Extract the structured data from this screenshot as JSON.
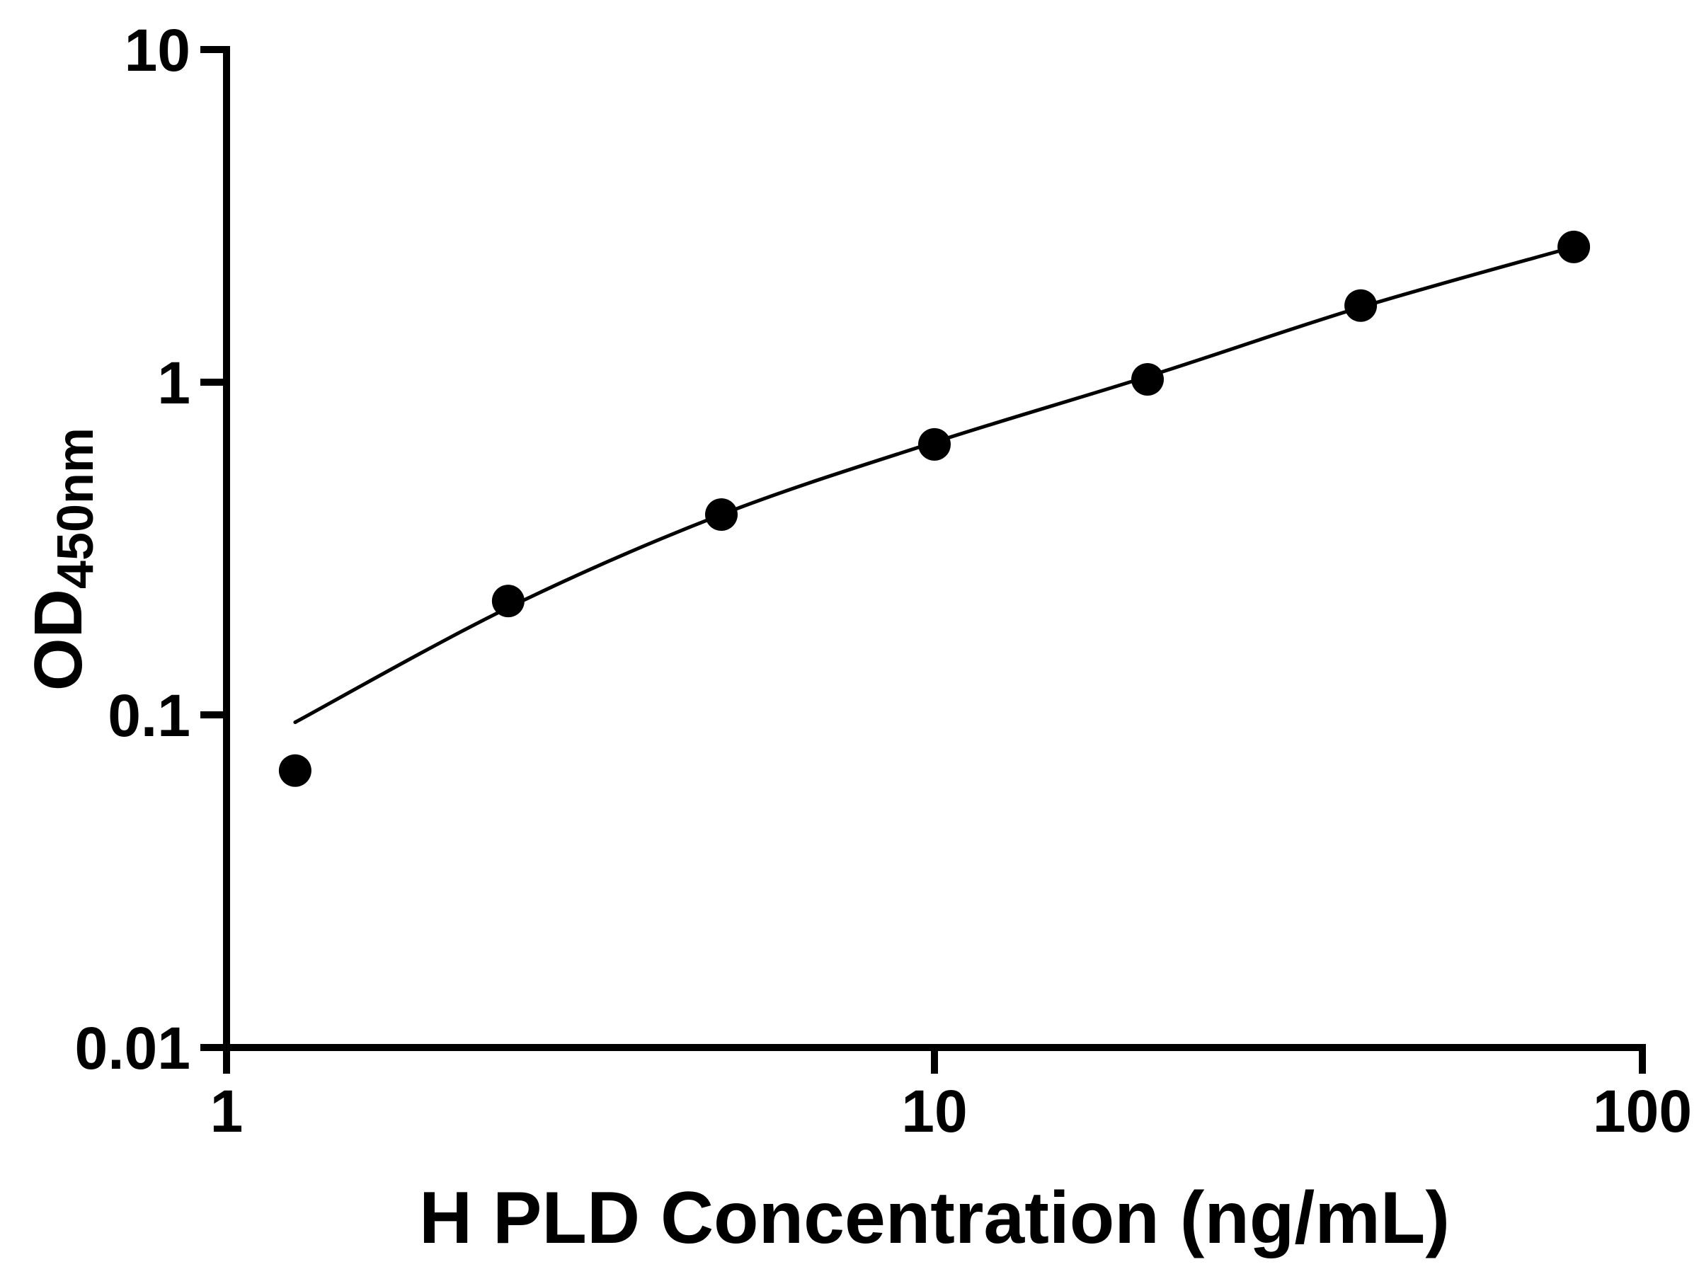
{
  "chart_data": {
    "type": "scatter",
    "title": "",
    "xlabel": "H PLD Concentration (ng/mL)",
    "ylabel_base": "OD",
    "ylabel_subscript": "450nm",
    "xscale": "log",
    "yscale": "log",
    "xlim": [
      1,
      100
    ],
    "ylim": [
      0.01,
      10
    ],
    "x_ticks": [
      1,
      10,
      100
    ],
    "x_tick_labels": [
      "1",
      "10",
      "100"
    ],
    "y_ticks": [
      0.01,
      0.1,
      1,
      10
    ],
    "y_tick_labels": [
      "0.01",
      "0.1",
      "1",
      "10"
    ],
    "grid": false,
    "legend": false,
    "series": [
      {
        "x": [
          1.25,
          2.5,
          5,
          10,
          20,
          40,
          80
        ],
        "y": [
          0.068,
          0.22,
          0.4,
          0.65,
          1.02,
          1.7,
          2.55
        ],
        "marker": "circle",
        "marker_color": "#000000",
        "marker_radius_px": 23
      }
    ],
    "fit_curve": {
      "color": "#000000",
      "x": [
        1.25,
        2.5,
        5,
        10,
        20,
        40,
        80
      ],
      "y": [
        0.095,
        0.21,
        0.4,
        0.66,
        1.04,
        1.68,
        2.55
      ]
    },
    "colors": {
      "axis": "#000000",
      "background": "#ffffff"
    }
  }
}
